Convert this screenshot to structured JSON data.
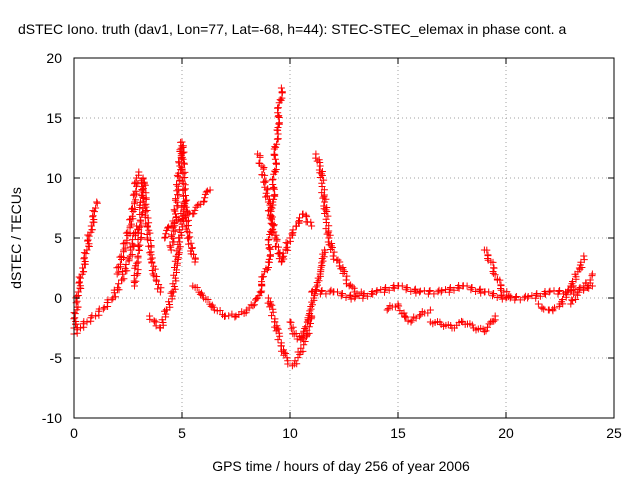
{
  "chart_data": {
    "type": "scatter",
    "title": "dSTEC Iono. truth (dav1, Lon=77, Lat=-68, h=44): STEC-STEC_elemax in phase cont. a",
    "xlabel": "GPS time / hours of day 256 of year 2006",
    "ylabel": "dSTEC  / TECUs",
    "xlim": [
      0,
      25
    ],
    "ylim": [
      -10,
      20
    ],
    "xticks": [
      "0",
      "5",
      "10",
      "15",
      "20",
      "25"
    ],
    "yticks": [
      "-10",
      "-5",
      "0",
      "5",
      "10",
      "15",
      "20"
    ],
    "grid": true,
    "marker": "plus",
    "color": "#ff0000",
    "series": [
      {
        "x": [
          0.0,
          0.2,
          0.4,
          0.6,
          0.8,
          1.0,
          1.05
        ],
        "y": [
          -2.5,
          0.5,
          2.5,
          4.0,
          6.0,
          7.5,
          8.0
        ]
      },
      {
        "x": [
          0.0,
          0.3,
          0.6,
          1.0,
          1.4,
          1.8,
          2.2,
          2.6,
          2.9
        ],
        "y": [
          -3.0,
          -2.5,
          -2.0,
          -1.5,
          -0.8,
          0.0,
          1.5,
          3.5,
          6.0
        ]
      },
      {
        "x": [
          2.0,
          2.3,
          2.6,
          2.8,
          2.9,
          3.0
        ],
        "y": [
          2.0,
          4.0,
          6.0,
          8.0,
          10.0,
          10.5
        ]
      },
      {
        "x": [
          2.8,
          3.0,
          3.2,
          3.4,
          3.6,
          3.8,
          4.0
        ],
        "y": [
          1.0,
          4.0,
          10.0,
          6.0,
          3.0,
          1.5,
          0.5
        ]
      },
      {
        "x": [
          3.5,
          3.8,
          4.0,
          4.3,
          4.6,
          4.9,
          5.1
        ],
        "y": [
          -1.5,
          -2.0,
          -2.5,
          -1.0,
          0.5,
          5.0,
          8.0
        ]
      },
      {
        "x": [
          4.5,
          4.7,
          4.9,
          5.0,
          5.1,
          5.3,
          5.6
        ],
        "y": [
          4.0,
          7.0,
          11.0,
          13.0,
          9.0,
          5.0,
          3.0
        ]
      },
      {
        "x": [
          4.2,
          4.5,
          5.0,
          5.5,
          6.0,
          6.3
        ],
        "y": [
          5.0,
          6.0,
          6.5,
          7.0,
          8.0,
          9.0
        ]
      },
      {
        "x": [
          5.5,
          6.0,
          6.5,
          7.0,
          7.5,
          8.0,
          8.5,
          9.0,
          9.2,
          9.4,
          9.6
        ],
        "y": [
          1.0,
          0.0,
          -1.0,
          -1.5,
          -1.5,
          -1.0,
          0.0,
          3.0,
          8.0,
          14.0,
          17.5
        ]
      },
      {
        "x": [
          8.5,
          8.7,
          9.0,
          9.3,
          9.6,
          10.0,
          10.3,
          10.6,
          11.0
        ],
        "y": [
          12.0,
          11.0,
          8.0,
          5.0,
          3.0,
          5.0,
          6.0,
          7.0,
          6.0
        ]
      },
      {
        "x": [
          9.0,
          9.3,
          9.6,
          9.9,
          10.2,
          10.5,
          10.8,
          11.0
        ],
        "y": [
          0.0,
          -2.0,
          -4.0,
          -5.5,
          -5.5,
          -4.5,
          -3.0,
          -1.5
        ]
      },
      {
        "x": [
          10.0,
          10.2,
          10.5,
          10.8,
          11.1,
          11.4,
          11.6
        ],
        "y": [
          -2.0,
          -3.0,
          -3.5,
          -2.0,
          0.0,
          2.0,
          4.0
        ]
      },
      {
        "x": [
          11.2,
          11.4,
          11.6,
          11.8,
          12.0,
          12.3,
          12.6,
          13.0,
          13.3
        ],
        "y": [
          12.0,
          11.0,
          8.0,
          5.0,
          3.5,
          3.0,
          1.5,
          0.5,
          0.5
        ]
      },
      {
        "x": [
          11.0,
          12.0,
          13.0,
          14.0,
          15.0,
          16.0,
          17.0,
          18.0,
          19.0,
          20.0,
          21.0,
          22.0,
          23.0,
          24.0
        ],
        "y": [
          0.5,
          0.5,
          0.0,
          0.5,
          1.0,
          0.5,
          0.5,
          1.0,
          0.5,
          0.0,
          0.0,
          0.5,
          0.5,
          1.0
        ]
      },
      {
        "x": [
          14.5,
          15.0,
          15.3,
          15.6,
          16.0,
          16.5
        ],
        "y": [
          -1.0,
          -0.5,
          -1.5,
          -2.0,
          -1.5,
          -1.0
        ]
      },
      {
        "x": [
          16.5,
          17.0,
          17.5,
          18.0,
          18.5,
          19.0,
          19.5
        ],
        "y": [
          -2.0,
          -2.2,
          -2.5,
          -2.0,
          -2.5,
          -2.8,
          -1.5
        ]
      },
      {
        "x": [
          19.0,
          19.3,
          19.6,
          19.9,
          20.2
        ],
        "y": [
          4.0,
          3.0,
          1.5,
          0.5,
          0.0
        ]
      },
      {
        "x": [
          21.5,
          22.0,
          22.5,
          23.0,
          23.4,
          23.6
        ],
        "y": [
          -0.5,
          -1.0,
          -0.5,
          1.0,
          2.5,
          3.5
        ]
      },
      {
        "x": [
          23.0,
          23.3,
          23.6,
          23.9,
          24.0
        ],
        "y": [
          -0.5,
          0.5,
          1.0,
          1.5,
          2.0
        ]
      }
    ]
  }
}
